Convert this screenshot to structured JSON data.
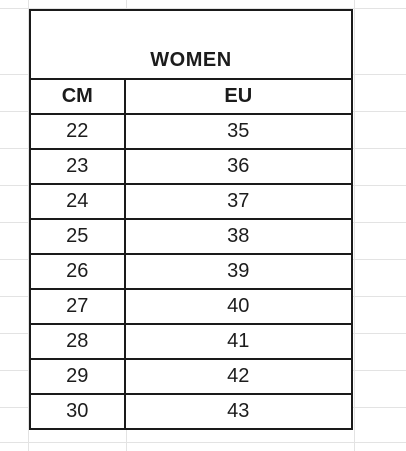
{
  "table": {
    "title": "WOMEN",
    "headers": [
      "CM",
      "EU"
    ],
    "rows": [
      {
        "cm": "22",
        "eu": "35"
      },
      {
        "cm": "23",
        "eu": "36"
      },
      {
        "cm": "24",
        "eu": "37"
      },
      {
        "cm": "25",
        "eu": "38"
      },
      {
        "cm": "26",
        "eu": "39"
      },
      {
        "cm": "27",
        "eu": "40"
      },
      {
        "cm": "28",
        "eu": "41"
      },
      {
        "cm": "29",
        "eu": "42"
      },
      {
        "cm": "30",
        "eu": "43"
      }
    ]
  },
  "colors": {
    "border": "#1a1a1a",
    "text": "#1c1c1c",
    "gridline": "#e3e3e3",
    "background": "#ffffff"
  }
}
